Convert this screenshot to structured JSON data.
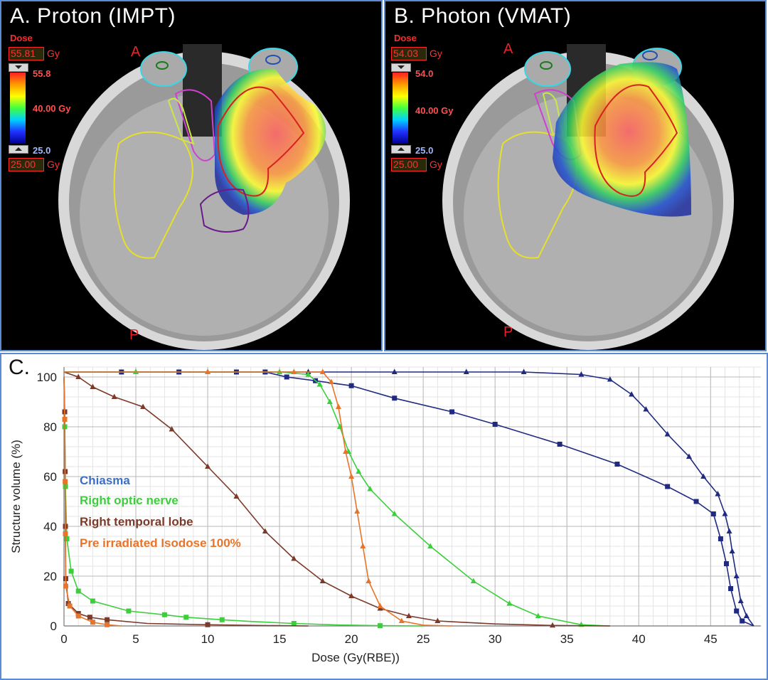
{
  "panels": {
    "a": {
      "title": "A. Proton (IMPT)",
      "anterior": "A",
      "posterior": "P",
      "dose_word": "Dose",
      "max_box": "55.81",
      "min_box": "25.00",
      "unit": "Gy",
      "cb_max": "55.8",
      "cb_mid": "40.00 Gy",
      "cb_min": "25.0"
    },
    "b": {
      "title": "B. Photon (VMAT)",
      "anterior": "A",
      "posterior": "P",
      "dose_word": "Dose",
      "max_box": "54.03",
      "min_box": "25.00",
      "unit": "Gy",
      "cb_max": "54.0",
      "cb_mid": "40.00 Gy",
      "cb_min": "25.0"
    },
    "c": {
      "title": "C."
    }
  },
  "chart_data": {
    "type": "line",
    "xlabel": "Dose (Gy(RBE))",
    "ylabel": "Structure  volume (%)",
    "xlim": [
      0,
      48.5
    ],
    "ylim": [
      0,
      104
    ],
    "xticks": [
      0,
      5,
      10,
      15,
      20,
      25,
      30,
      35,
      40,
      45
    ],
    "yticks": [
      0,
      20,
      40,
      60,
      80,
      100
    ],
    "grid": true,
    "legend_position": "left",
    "legend": [
      {
        "label": "Chiasma",
        "color": "#3a6fc4"
      },
      {
        "label": "Right optic nerve",
        "color": "#3ccf3c"
      },
      {
        "label": "Right temporal lobe",
        "color": "#7b3a2a"
      },
      {
        "label": "Pre irradiated Isodose 100%",
        "color": "#e8742a"
      }
    ],
    "series": [
      {
        "structure": "Chiasma",
        "plan": "IMPT",
        "color": "#1f2a80",
        "marker": "square",
        "points": [
          [
            0,
            102
          ],
          [
            4,
            102
          ],
          [
            8,
            102
          ],
          [
            12,
            102
          ],
          [
            14,
            102
          ],
          [
            15.5,
            100
          ],
          [
            17.5,
            98.5
          ],
          [
            20,
            96.5
          ],
          [
            23,
            91.5
          ],
          [
            27,
            86
          ],
          [
            30,
            81
          ],
          [
            34.5,
            73
          ],
          [
            38.5,
            65
          ],
          [
            42,
            56
          ],
          [
            44,
            50
          ],
          [
            45.2,
            45
          ],
          [
            45.7,
            35
          ],
          [
            46.1,
            25
          ],
          [
            46.4,
            15
          ],
          [
            46.8,
            6
          ],
          [
            47.2,
            2
          ],
          [
            48,
            0
          ]
        ]
      },
      {
        "structure": "Chiasma",
        "plan": "VMAT",
        "color": "#1f2a80",
        "marker": "triangle",
        "points": [
          [
            0,
            102
          ],
          [
            5,
            102
          ],
          [
            10,
            102
          ],
          [
            17,
            102
          ],
          [
            23,
            102
          ],
          [
            28,
            102
          ],
          [
            32,
            102
          ],
          [
            36,
            101
          ],
          [
            38,
            99
          ],
          [
            39.5,
            93
          ],
          [
            40.5,
            87
          ],
          [
            42,
            77
          ],
          [
            43.5,
            68
          ],
          [
            44.5,
            60
          ],
          [
            45.5,
            53
          ],
          [
            46,
            45
          ],
          [
            46.3,
            38
          ],
          [
            46.5,
            30
          ],
          [
            46.8,
            20
          ],
          [
            47.1,
            10
          ],
          [
            47.5,
            4
          ],
          [
            48,
            0
          ]
        ]
      },
      {
        "structure": "Right optic nerve",
        "plan": "IMPT",
        "color": "#3ccf3c",
        "marker": "square",
        "points": [
          [
            0,
            100
          ],
          [
            0.05,
            80
          ],
          [
            0.1,
            56
          ],
          [
            0.2,
            35
          ],
          [
            0.5,
            22
          ],
          [
            1,
            14
          ],
          [
            2,
            10
          ],
          [
            4.5,
            6
          ],
          [
            7,
            4.5
          ],
          [
            8.5,
            3.5
          ],
          [
            11,
            2.5
          ],
          [
            13,
            1.8
          ],
          [
            16,
            1
          ],
          [
            19,
            0.4
          ],
          [
            22,
            0.1
          ],
          [
            25,
            0
          ]
        ]
      },
      {
        "structure": "Right optic nerve",
        "plan": "VMAT",
        "color": "#3ccf3c",
        "marker": "triangle",
        "points": [
          [
            0,
            102
          ],
          [
            5,
            102
          ],
          [
            10,
            102
          ],
          [
            15,
            102
          ],
          [
            17,
            101
          ],
          [
            17.8,
            97
          ],
          [
            18.5,
            90
          ],
          [
            19.2,
            80
          ],
          [
            19.8,
            70
          ],
          [
            20.5,
            62
          ],
          [
            21.3,
            55
          ],
          [
            23,
            45
          ],
          [
            25.5,
            32
          ],
          [
            28.5,
            18
          ],
          [
            31,
            9
          ],
          [
            33,
            4
          ],
          [
            36,
            0.5
          ],
          [
            38,
            0
          ]
        ]
      },
      {
        "structure": "Right temporal lobe",
        "plan": "IMPT",
        "color": "#7b3a2a",
        "marker": "square",
        "points": [
          [
            0,
            100
          ],
          [
            0.05,
            86
          ],
          [
            0.08,
            62
          ],
          [
            0.1,
            40
          ],
          [
            0.12,
            19
          ],
          [
            0.3,
            9
          ],
          [
            1,
            5
          ],
          [
            1.8,
            3.5
          ],
          [
            3,
            2.5
          ],
          [
            5.8,
            1
          ],
          [
            10,
            0.5
          ],
          [
            13.5,
            0.2
          ],
          [
            17,
            0
          ]
        ]
      },
      {
        "structure": "Right temporal lobe",
        "plan": "VMAT",
        "color": "#7b3a2a",
        "marker": "triangle",
        "points": [
          [
            0,
            102
          ],
          [
            1,
            100
          ],
          [
            2,
            96
          ],
          [
            3.5,
            92
          ],
          [
            5.5,
            88
          ],
          [
            7.5,
            79
          ],
          [
            10,
            64
          ],
          [
            12,
            52
          ],
          [
            14,
            38
          ],
          [
            16,
            27
          ],
          [
            18,
            18
          ],
          [
            20,
            12
          ],
          [
            22,
            7
          ],
          [
            24,
            4
          ],
          [
            26,
            2
          ],
          [
            30,
            0.8
          ],
          [
            34,
            0.2
          ],
          [
            38,
            0
          ]
        ]
      },
      {
        "structure": "Pre irradiated Isodose 100%",
        "plan": "IMPT",
        "color": "#e8742a",
        "marker": "square",
        "points": [
          [
            0,
            100
          ],
          [
            0.05,
            83
          ],
          [
            0.08,
            58
          ],
          [
            0.1,
            37
          ],
          [
            0.12,
            16
          ],
          [
            0.4,
            8
          ],
          [
            1,
            4
          ],
          [
            2,
            1.5
          ],
          [
            3,
            0.5
          ],
          [
            4,
            0
          ]
        ]
      },
      {
        "structure": "Pre irradiated Isodose 100%",
        "plan": "VMAT",
        "color": "#e8742a",
        "marker": "triangle",
        "points": [
          [
            0,
            102
          ],
          [
            10,
            102
          ],
          [
            16,
            102
          ],
          [
            18,
            102
          ],
          [
            18.6,
            98
          ],
          [
            19.1,
            88
          ],
          [
            19.6,
            70
          ],
          [
            20,
            60
          ],
          [
            20.4,
            46
          ],
          [
            20.8,
            32
          ],
          [
            21.2,
            18
          ],
          [
            22,
            8
          ],
          [
            23.5,
            2
          ],
          [
            25,
            0.3
          ],
          [
            27,
            0
          ]
        ]
      }
    ]
  }
}
